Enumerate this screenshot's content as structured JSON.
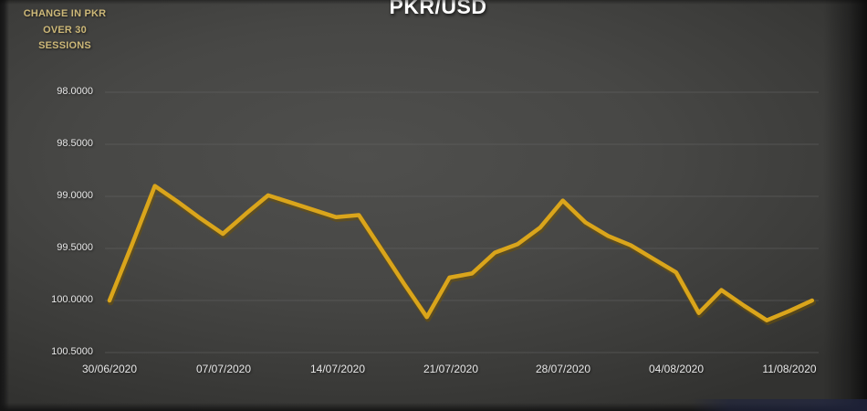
{
  "page": {
    "note": "CHANGE IN PKR OVER 30 SESSIONS"
  },
  "chart_data": {
    "type": "line",
    "title": "PKR/USD",
    "grid": true,
    "legend": false,
    "y_axis": {
      "reversed": true,
      "min": 98.0,
      "max": 100.5,
      "tick_values": [
        98.0,
        98.5,
        99.0,
        99.5,
        100.0,
        100.5
      ],
      "tick_labels": [
        "98.0000",
        "98.5000",
        "99.0000",
        "99.5000",
        "100.0000",
        "100.5000"
      ]
    },
    "x_axis": {
      "tick_labels": [
        "30/06/2020",
        "07/07/2020",
        "14/07/2020",
        "21/07/2020",
        "28/07/2020",
        "04/08/2020",
        "11/08/2020"
      ]
    },
    "series": [
      {
        "name": "PKR/USD",
        "dates": [
          "30/06/2020",
          "01/07/2020",
          "02/07/2020",
          "03/07/2020",
          "06/07/2020",
          "07/07/2020",
          "08/07/2020",
          "09/07/2020",
          "10/07/2020",
          "13/07/2020",
          "14/07/2020",
          "15/07/2020",
          "16/07/2020",
          "17/07/2020",
          "20/07/2020",
          "21/07/2020",
          "22/07/2020",
          "23/07/2020",
          "24/07/2020",
          "27/07/2020",
          "28/07/2020",
          "29/07/2020",
          "30/07/2020",
          "31/07/2020",
          "03/08/2020",
          "04/08/2020",
          "05/08/2020",
          "06/08/2020",
          "07/08/2020",
          "10/08/2020",
          "11/08/2020",
          "12/08/2020"
        ],
        "values": [
          100.0,
          99.46,
          98.9,
          99.05,
          99.21,
          99.36,
          99.17,
          98.99,
          99.06,
          99.13,
          99.2,
          99.18,
          99.51,
          99.84,
          100.16,
          99.78,
          99.74,
          99.54,
          99.46,
          99.3,
          99.04,
          99.25,
          99.38,
          99.47,
          99.6,
          99.73,
          100.12,
          99.9,
          100.05,
          100.19,
          100.1,
          100.0
        ]
      }
    ],
    "colors": {
      "line": "#DAA51B",
      "line_shadow": "#6e5208",
      "grid": "#646464",
      "axis_text": "#e8e8e8",
      "title_text": "#ffffff",
      "note_text": "#cdb878",
      "background": "#454543"
    }
  }
}
